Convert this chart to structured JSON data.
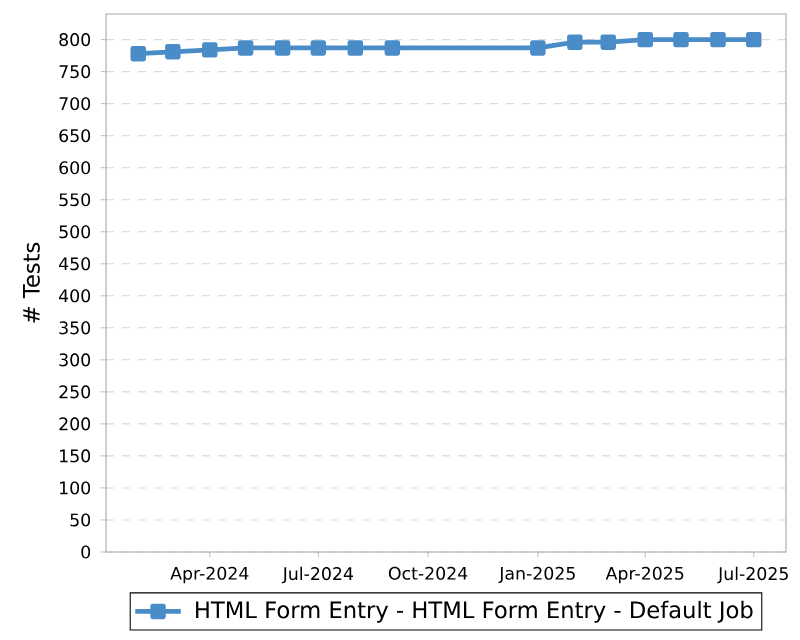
{
  "chart_data": {
    "type": "line",
    "ylabel": "# Tests",
    "x": [
      "2024-02-01",
      "2024-03-01",
      "2024-04-01",
      "2024-05-01",
      "2024-06-01",
      "2024-07-01",
      "2024-08-01",
      "2024-09-01",
      "2025-01-01",
      "2025-02-01",
      "2025-03-01",
      "2025-04-01",
      "2025-05-01",
      "2025-06-01",
      "2025-07-01"
    ],
    "series": [
      {
        "name": "HTML Form Entry - HTML Form Entry - Default Job",
        "color": "#4a8cc8",
        "values": [
          778,
          781,
          784,
          787,
          787,
          787,
          787,
          787,
          787,
          796,
          796,
          800,
          800,
          800,
          800
        ]
      }
    ],
    "xlim": [
      "2024-01-05",
      "2025-07-28"
    ],
    "xticks": [
      {
        "value": "2024-04-01",
        "label": "Apr-2024"
      },
      {
        "value": "2024-07-01",
        "label": "Jul-2024"
      },
      {
        "value": "2024-10-01",
        "label": "Oct-2024"
      },
      {
        "value": "2025-01-01",
        "label": "Jan-2025"
      },
      {
        "value": "2025-04-01",
        "label": "Apr-2025"
      },
      {
        "value": "2025-07-01",
        "label": "Jul-2025"
      }
    ],
    "ylim": [
      0,
      840
    ],
    "yticks": [
      0,
      50,
      100,
      150,
      200,
      250,
      300,
      350,
      400,
      450,
      500,
      550,
      600,
      650,
      700,
      750,
      800
    ],
    "grid": "y",
    "legend": "bottom",
    "marker": "square",
    "line_style": "solid"
  }
}
